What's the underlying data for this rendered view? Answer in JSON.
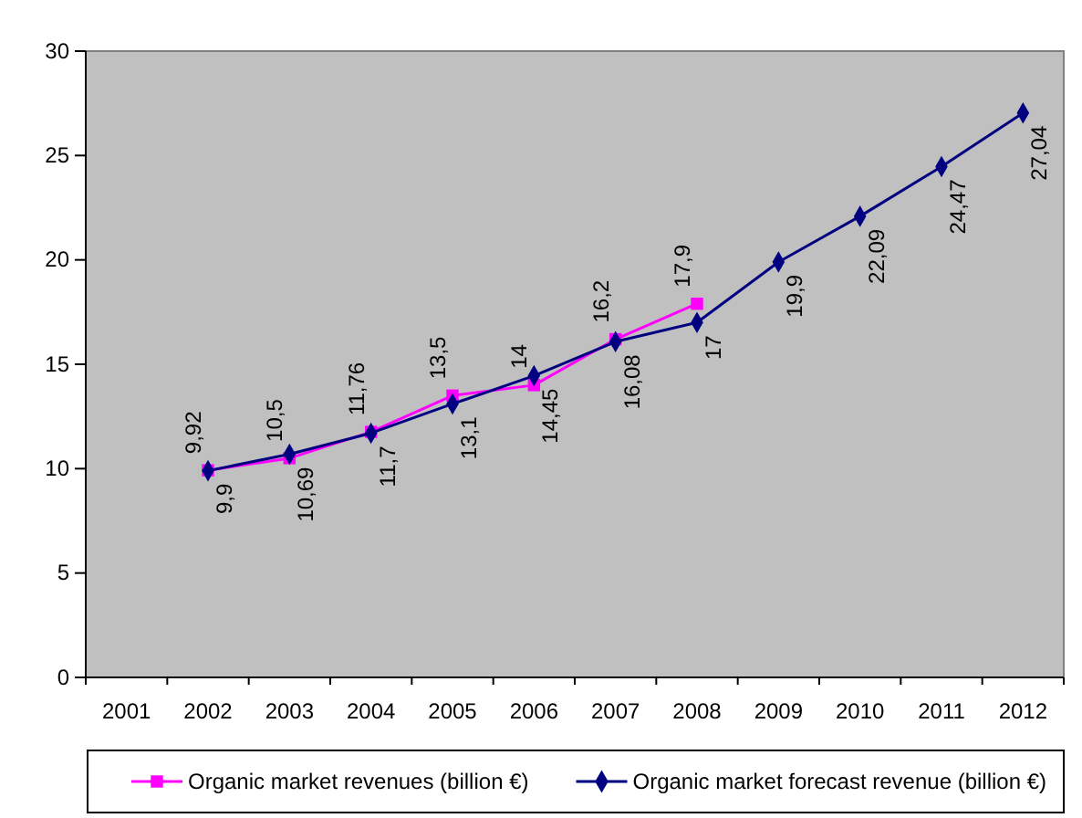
{
  "chart_data": {
    "type": "line",
    "categories": [
      "2001",
      "2002",
      "2003",
      "2004",
      "2005",
      "2006",
      "2007",
      "2008",
      "2009",
      "2010",
      "2011",
      "2012"
    ],
    "series": [
      {
        "name": "Organic market revenues (billion €)",
        "color": "#ff00ff",
        "marker": "square",
        "values": [
          null,
          9.92,
          10.5,
          11.76,
          13.5,
          14,
          16.2,
          17.9,
          null,
          null,
          null,
          null
        ],
        "value_labels": [
          null,
          "9,92",
          "10,5",
          "11,76",
          "13,5",
          "14",
          "16,2",
          "17,9",
          null,
          null,
          null,
          null
        ]
      },
      {
        "name": "Organic market forecast revenue (billion €)",
        "color": "#000080",
        "marker": "diamond",
        "values": [
          null,
          9.9,
          10.69,
          11.7,
          13.1,
          14.45,
          16.08,
          17,
          19.9,
          22.09,
          24.47,
          27.04
        ],
        "value_labels": [
          null,
          "9,9",
          "10,69",
          "11,7",
          "13,1",
          "14,45",
          "16,08",
          "17",
          "19,9",
          "22,09",
          "24,47",
          "27,04"
        ]
      }
    ],
    "ylim": [
      0,
      30
    ],
    "yticks": [
      0,
      5,
      10,
      15,
      20,
      25,
      30
    ],
    "grid": false,
    "legend": "bottom",
    "line_style": "solid"
  }
}
